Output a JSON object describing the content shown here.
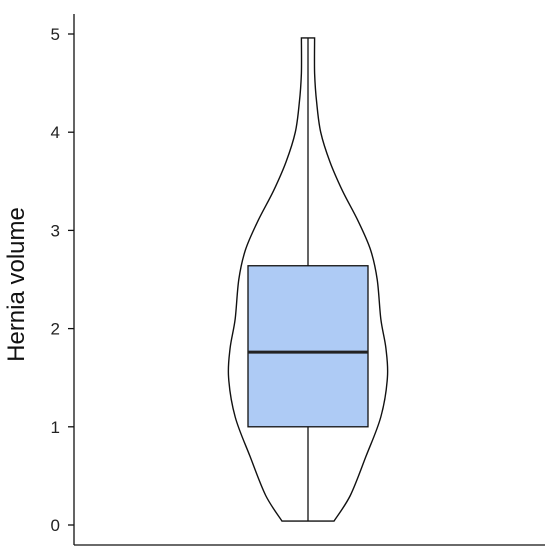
{
  "chart_data": {
    "type": "violin",
    "ylabel": "Hernia volume",
    "ylim": [
      0,
      5
    ],
    "y_ticks": [
      0,
      1,
      2,
      3,
      4,
      5
    ],
    "y_tick_labels": [
      "0",
      "1",
      "2",
      "3",
      "4",
      "5"
    ],
    "grid": false,
    "legend": "none",
    "violin": {
      "min": 0.04,
      "max": 4.96,
      "density_profile": [
        {
          "y": 0.04,
          "half_width": 0.51
        },
        {
          "y": 0.3,
          "half_width": 0.83
        },
        {
          "y": 0.7,
          "half_width": 1.14
        },
        {
          "y": 1.1,
          "half_width": 1.43
        },
        {
          "y": 1.5,
          "half_width": 1.56
        },
        {
          "y": 1.8,
          "half_width": 1.53
        },
        {
          "y": 2.1,
          "half_width": 1.43
        },
        {
          "y": 2.5,
          "half_width": 1.36
        },
        {
          "y": 2.8,
          "half_width": 1.23
        },
        {
          "y": 3.1,
          "half_width": 0.98
        },
        {
          "y": 3.4,
          "half_width": 0.68
        },
        {
          "y": 3.7,
          "half_width": 0.43
        },
        {
          "y": 4.0,
          "half_width": 0.25
        },
        {
          "y": 4.3,
          "half_width": 0.17
        },
        {
          "y": 4.6,
          "half_width": 0.13
        },
        {
          "y": 4.96,
          "half_width": 0.13
        }
      ]
    },
    "box": {
      "q1": 1.0,
      "median": 1.76,
      "q3": 2.64,
      "whisker_low": 0.04,
      "whisker_high": 4.96
    },
    "colors": {
      "box_fill": "#aecbf5",
      "outline": "#111111",
      "median": "#222222"
    }
  }
}
